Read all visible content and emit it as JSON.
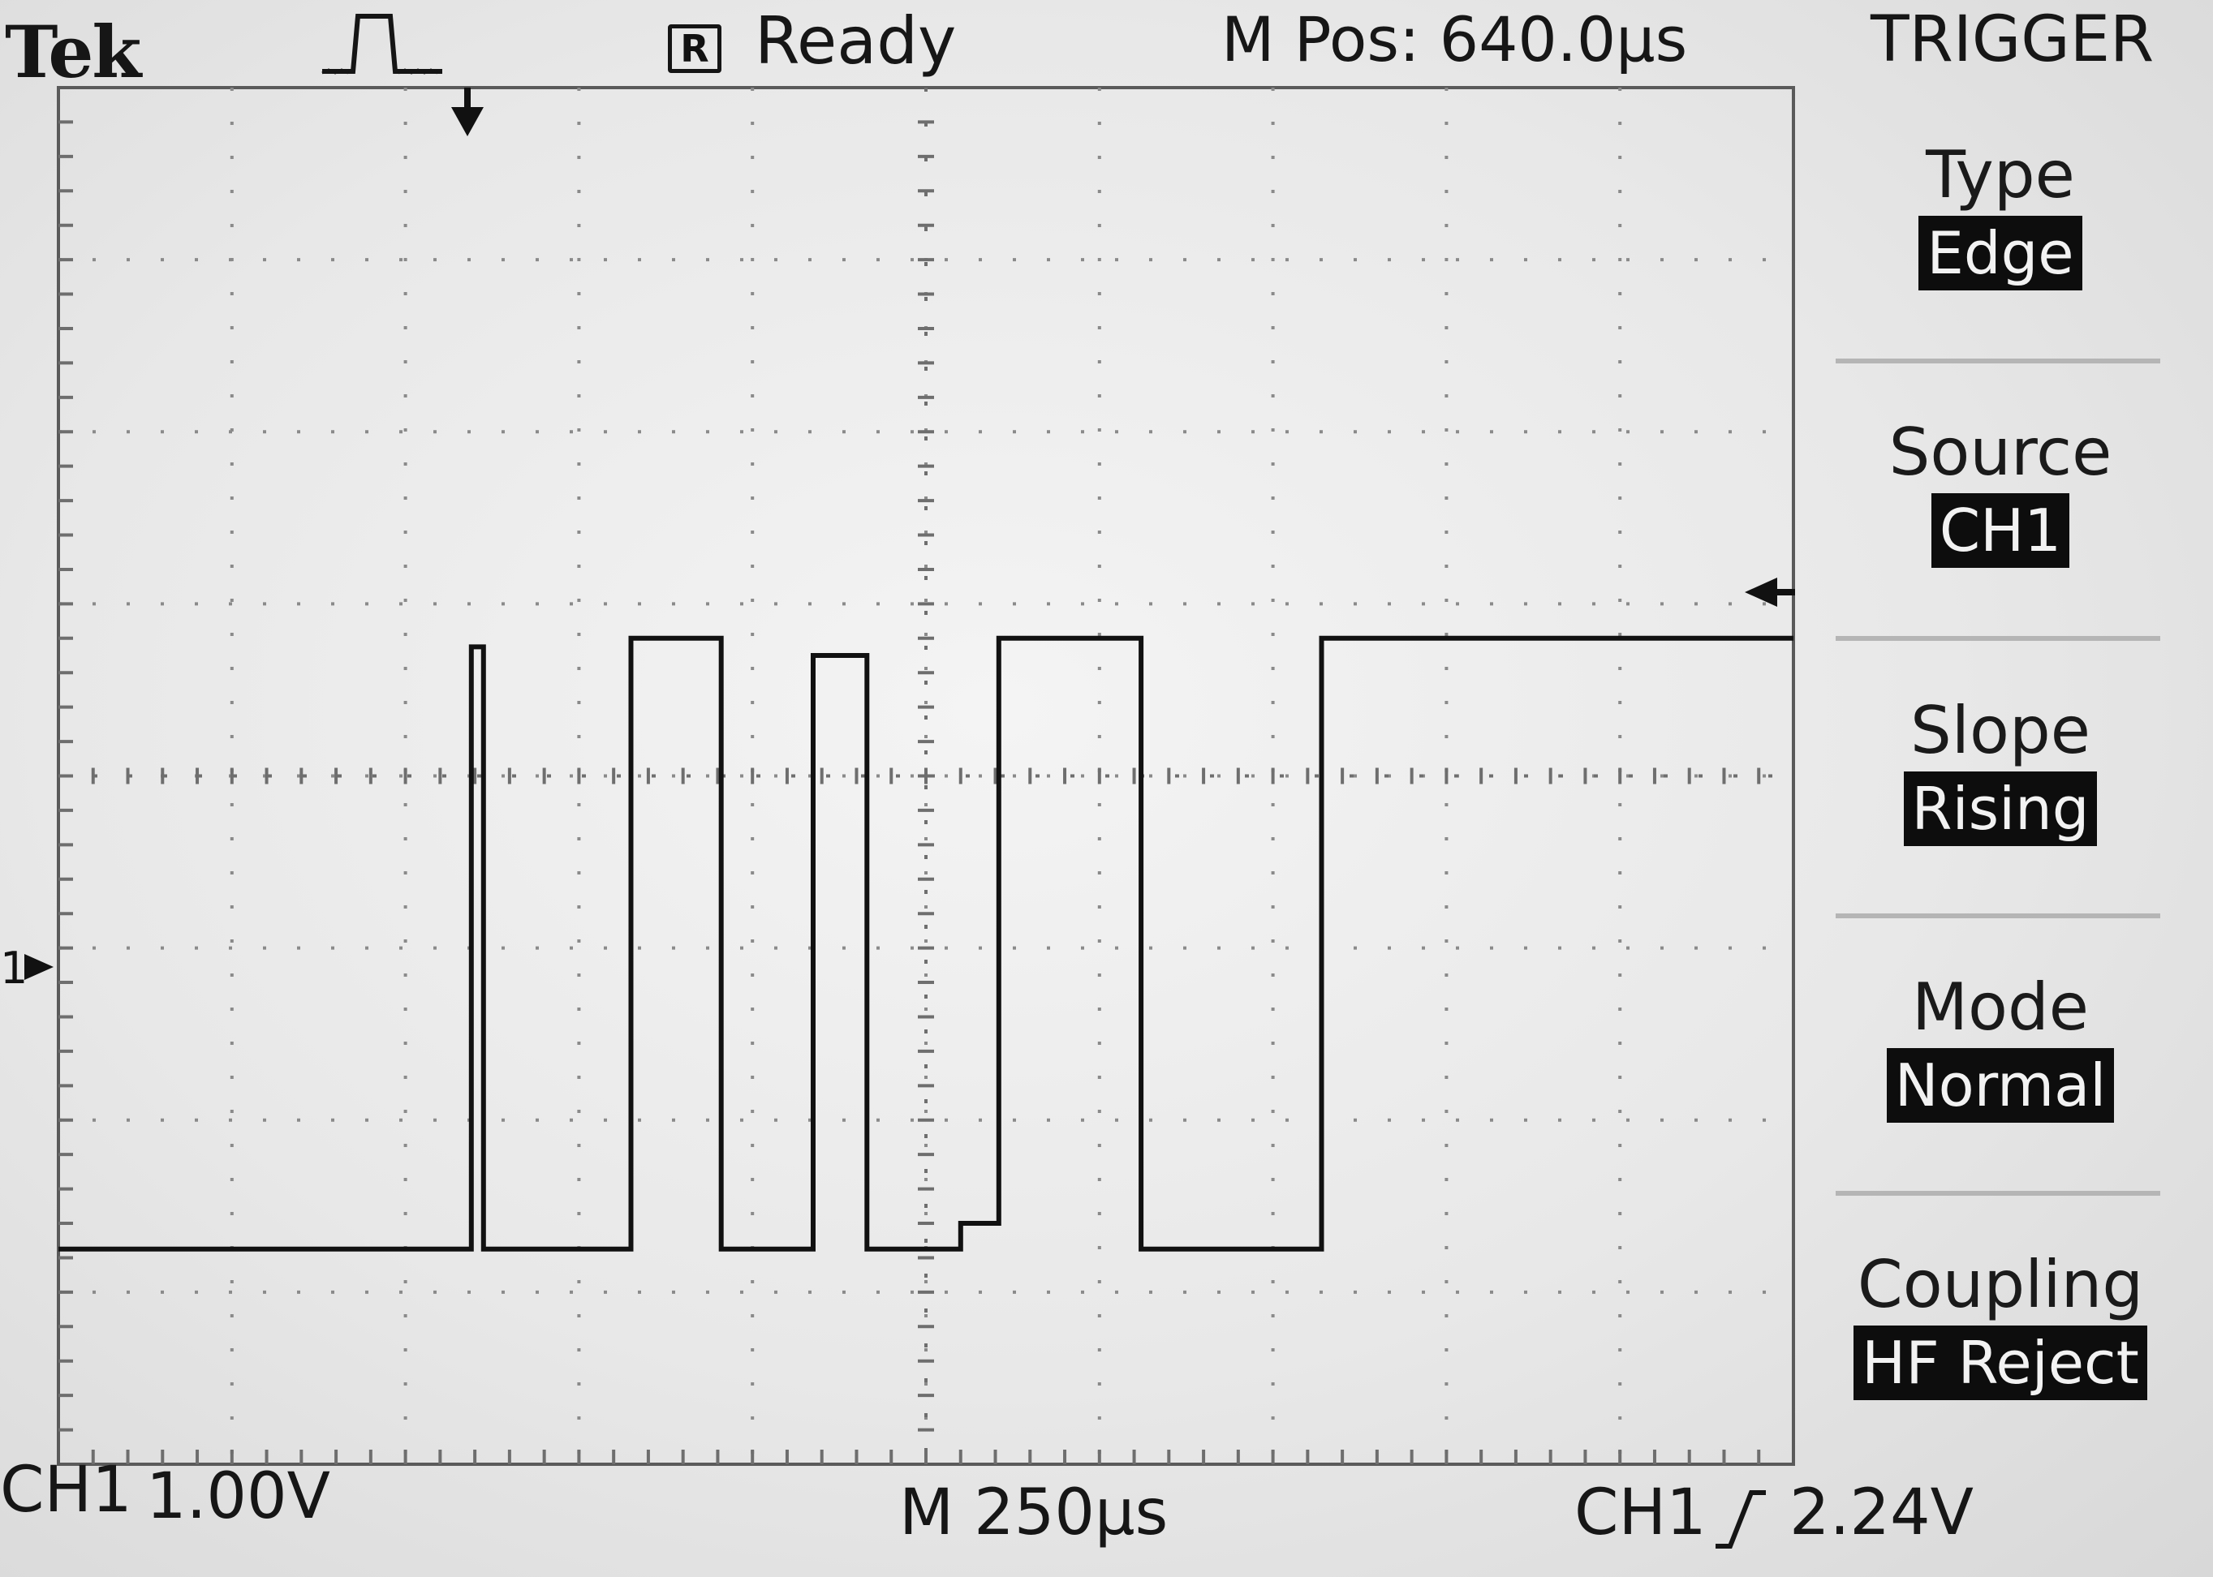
{
  "header": {
    "brand": "Tek",
    "run_indicator": "R",
    "run_status": "Ready",
    "horizontal_position": "M Pos: 640.0µs",
    "acquisition_icon": "pulse-icon"
  },
  "side_menu": {
    "title": "TRIGGER",
    "items": [
      {
        "label": "Type",
        "value": "Edge"
      },
      {
        "label": "Source",
        "value": "CH1"
      },
      {
        "label": "Slope",
        "value": "Rising"
      },
      {
        "label": "Mode",
        "value": "Normal"
      },
      {
        "label": "Coupling",
        "value": "HF Reject"
      }
    ]
  },
  "footer": {
    "channel": "CH1",
    "volts_per_div": "1.00V",
    "timebase": "M 250µs",
    "trigger_source": "CH1",
    "trigger_slope_icon": "rising-edge-icon",
    "trigger_level": "2.24V"
  },
  "markers": {
    "channel_ground_marker": "1"
  },
  "colors": {
    "screen_background": "#e8e8e8",
    "trace": "#111111",
    "highlight_background": "#0d0d0d",
    "highlight_text": "#f2f2f2"
  },
  "chart_data": {
    "type": "line",
    "xlabel": "",
    "ylabel": "",
    "x_divisions": 10,
    "y_divisions": 8,
    "xlim": [
      0,
      10
    ],
    "ylim": [
      -4,
      4
    ],
    "grid": true,
    "series": [
      {
        "x": [
          0,
          2.38,
          2.38,
          2.45,
          2.45,
          3.3,
          3.3,
          3.82,
          3.82,
          4.35,
          4.35,
          4.66,
          4.66,
          5.2,
          5.2,
          5.42,
          5.42,
          6.24,
          6.24,
          7.28,
          7.28,
          10
        ],
        "y": [
          -2.75,
          -2.75,
          0.75,
          0.75,
          -2.75,
          -2.75,
          0.8,
          0.8,
          -2.75,
          -2.75,
          0.7,
          0.7,
          -2.75,
          -2.75,
          -2.6,
          -2.6,
          0.8,
          0.8,
          -2.75,
          -2.75,
          0.8,
          0.8
        ]
      }
    ]
  }
}
